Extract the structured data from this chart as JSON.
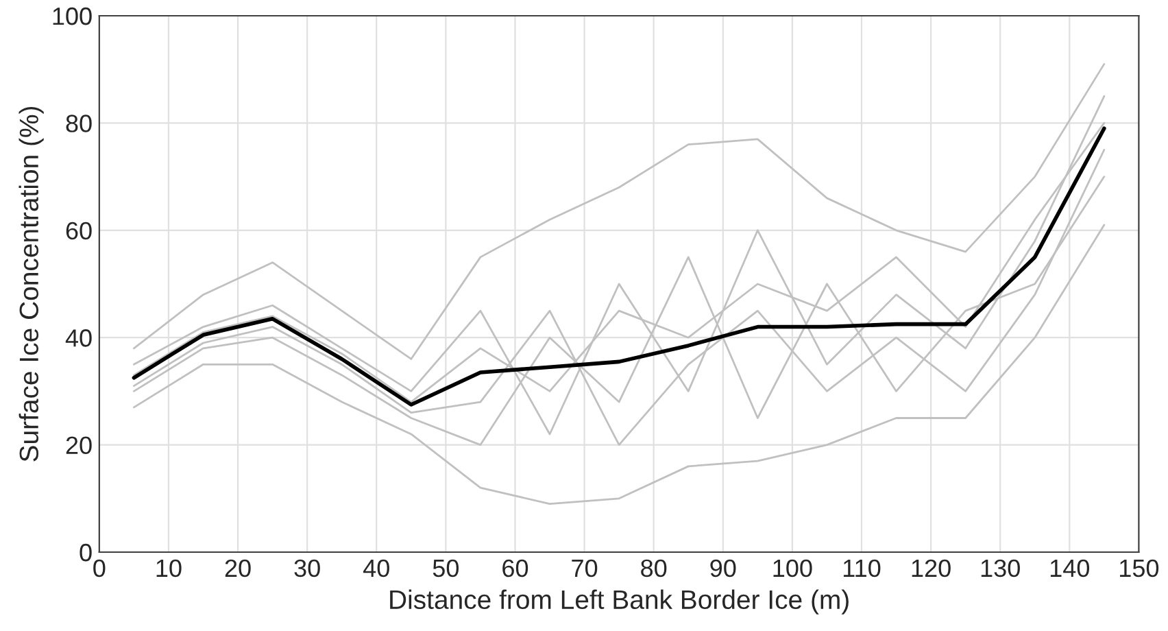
{
  "chart_data": {
    "type": "line",
    "xlabel": "Distance from Left Bank Border Ice (m)",
    "ylabel": "Surface Ice Concentration (%)",
    "x": [
      5,
      15,
      25,
      35,
      45,
      55,
      65,
      75,
      85,
      95,
      105,
      115,
      125,
      135,
      145
    ],
    "series": [
      {
        "color": "#c0c0c0",
        "values": [
          38,
          48,
          54,
          45,
          36,
          55,
          62,
          68,
          76,
          77,
          66,
          60,
          56,
          70,
          91
        ]
      },
      {
        "color": "#c0c0c0",
        "values": [
          27,
          35,
          35,
          28,
          22,
          12,
          9,
          10,
          16,
          17,
          20,
          25,
          25,
          40,
          61
        ]
      },
      {
        "color": "#c0c0c0",
        "values": [
          35,
          42,
          46,
          38,
          30,
          45,
          22,
          50,
          30,
          60,
          35,
          48,
          38,
          58,
          85
        ]
      },
      {
        "color": "#c0c0c0",
        "values": [
          30,
          38,
          40,
          33,
          25,
          20,
          40,
          28,
          55,
          25,
          50,
          30,
          45,
          50,
          70
        ]
      },
      {
        "color": "#c0c0c0",
        "values": [
          33,
          41,
          44,
          37,
          28,
          38,
          30,
          45,
          40,
          50,
          45,
          55,
          42,
          62,
          80
        ]
      },
      {
        "color": "#c0c0c0",
        "values": [
          31,
          39,
          42,
          35,
          26,
          28,
          45,
          20,
          35,
          45,
          30,
          40,
          30,
          48,
          75
        ]
      },
      {
        "color": "#000000",
        "values": [
          32.5,
          40.5,
          43.5,
          36,
          27.5,
          33.5,
          34.5,
          35.5,
          38.5,
          42,
          42,
          42.5,
          42.5,
          55,
          79
        ]
      }
    ],
    "xlim": [
      0,
      150
    ],
    "xticks": [
      0,
      10,
      20,
      30,
      40,
      50,
      60,
      70,
      80,
      90,
      100,
      110,
      120,
      130,
      140,
      150
    ],
    "ylim": [
      0,
      100
    ],
    "yticks": [
      0,
      20,
      40,
      60,
      80,
      100
    ],
    "grid": true,
    "marker": "none",
    "line_style": "solid"
  }
}
